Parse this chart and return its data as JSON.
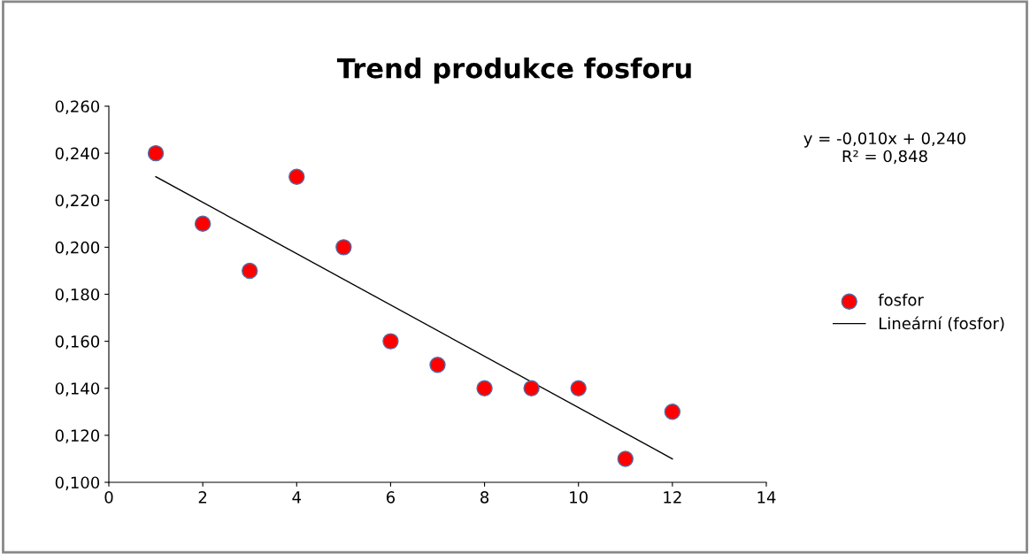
{
  "chart_data": {
    "type": "scatter",
    "title": "Trend produkce fosforu",
    "x": [
      1,
      2,
      3,
      4,
      5,
      6,
      7,
      8,
      9,
      10,
      11,
      12
    ],
    "series": [
      {
        "name": "fosfor",
        "marker": "circle",
        "color": "#ff0000",
        "values": [
          0.24,
          0.21,
          0.19,
          0.23,
          0.2,
          0.16,
          0.15,
          0.14,
          0.14,
          0.14,
          0.11,
          0.13
        ]
      },
      {
        "name": "Lineární (fosfor)",
        "type": "line",
        "marker": "none",
        "color": "#000000",
        "x": [
          1,
          12
        ],
        "values": [
          0.23,
          0.11
        ]
      }
    ],
    "xlim": [
      0,
      14
    ],
    "xticks": [
      0,
      2,
      4,
      6,
      8,
      10,
      12,
      14
    ],
    "ylim": [
      0.1,
      0.26
    ],
    "yticks": [
      {
        "value": 0.1,
        "label": "0,100"
      },
      {
        "value": 0.12,
        "label": "0,120"
      },
      {
        "value": 0.14,
        "label": "0,140"
      },
      {
        "value": 0.16,
        "label": "0,160"
      },
      {
        "value": 0.18,
        "label": "0,180"
      },
      {
        "value": 0.2,
        "label": "0,200"
      },
      {
        "value": 0.22,
        "label": "0,220"
      },
      {
        "value": 0.24,
        "label": "0,240"
      },
      {
        "value": 0.26,
        "label": "0,260"
      }
    ],
    "annotations": [
      "y = -0,010x + 0,240\nR² = 0,848"
    ],
    "grid": false,
    "legend": "right"
  }
}
